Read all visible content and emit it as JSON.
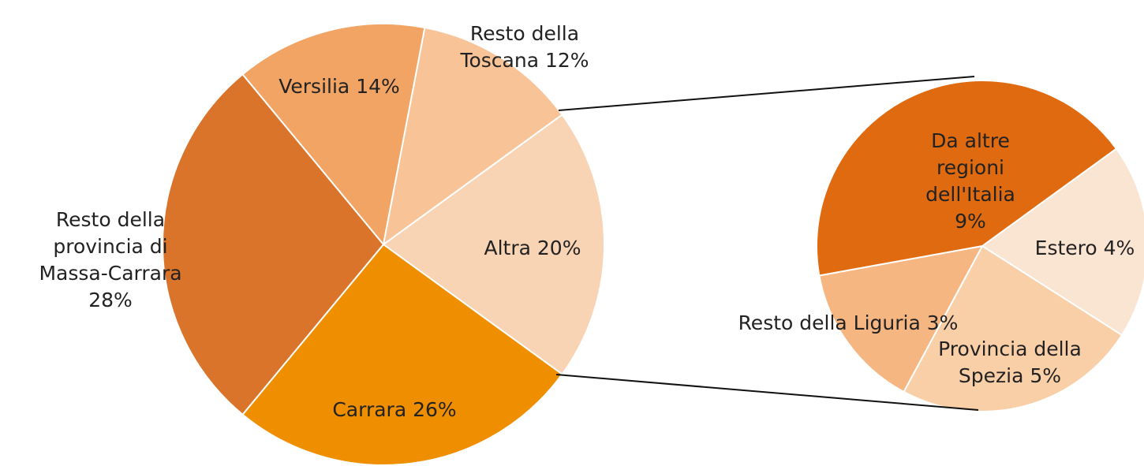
{
  "chart_data": [
    {
      "type": "pie",
      "categories": [
        "Altra",
        "Carrara",
        "Resto della provincia di Massa-Carrara",
        "Versilia",
        "Resto della Toscana"
      ],
      "values": [
        20,
        26,
        28,
        14,
        12
      ],
      "value_labels": [
        "20%",
        "26%",
        "28%",
        "14%",
        "12%"
      ],
      "colors": [
        "#f8d3b4",
        "#ef8f00",
        "#d9742a",
        "#f2a464",
        "#f7c397"
      ]
    },
    {
      "type": "pie",
      "categories": [
        "Estero",
        "Provincia della Spezia",
        "Resto della Liguria",
        "Da altre regioni dell'Italia"
      ],
      "values": [
        4,
        5,
        3,
        9
      ],
      "value_labels": [
        "4%",
        "5%",
        "3%",
        "9%"
      ],
      "colors": [
        "#fae4d2",
        "#f9cfa8",
        "#f6b682",
        "#e06a0f"
      ]
    }
  ]
}
